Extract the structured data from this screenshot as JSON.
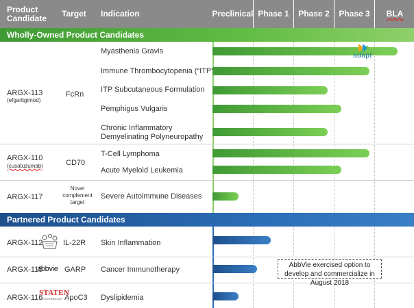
{
  "header": {
    "product_candidate": "Product Candidate",
    "target": "Target",
    "indication": "Indication",
    "phases": [
      "Preclinical",
      "Phase 1",
      "Phase 2",
      "Phase 3",
      "BLA"
    ]
  },
  "sections": {
    "wholly_owned": "Wholly-Owned Product Candidates",
    "partnered": "Partnered Product Candidates"
  },
  "products": {
    "argx113": {
      "name": "ARGX-113",
      "sub": "(efgartigimod)",
      "target": "FcRn"
    },
    "argx110": {
      "name": "ARGX-110",
      "sub": "(cusatuzumab)",
      "target": "CD70"
    },
    "argx117": {
      "name": "ARGX-117",
      "target": "Novel complement target"
    },
    "argx112": {
      "name": "ARGX-112",
      "target": "IL-22R"
    },
    "argx115": {
      "name": "ARGX-115",
      "partner": "abbvie",
      "target": "GARP"
    },
    "argx116": {
      "name": "ARGX-116",
      "partner": "STATEN",
      "partner_sub": "BIOTECHNOLOGY",
      "target": "ApoC3"
    }
  },
  "indications": {
    "mg": "Myasthenia Gravis",
    "itp": "Immune Thrombocytopenia (“ITP”)",
    "itp_sc": "ITP Subcutaneous Formulation",
    "pv": "Pemphigus Vulgaris",
    "cidp_1": "Chronic Inflammatory",
    "cidp_2": "Demyelinating Polyneuropathy",
    "tcl": "T-Cell Lymphoma",
    "aml": "Acute Myeloid Leukemia",
    "sad": "Severe Autoimmune Diseases",
    "skin": "Skin Inflammation",
    "cancer": "Cancer Immunotherapy",
    "dys": "Dyslipidemia"
  },
  "progress": {
    "mg": 0.92,
    "itp": 0.78,
    "itp_sc": 0.57,
    "pv": 0.64,
    "cidp": 0.57,
    "tcl": 0.78,
    "aml": 0.64,
    "sad": 0.13,
    "skin": 0.29,
    "cancer": 0.22,
    "dys": 0.13
  },
  "badge": {
    "name": "adapt"
  },
  "note": "AbbVie exercised option to develop and commercialize in August 2018",
  "colors": {
    "header_gray": "#8a8a8a",
    "green": "#62bd45",
    "blue": "#2a6cb5"
  },
  "icons": [
    "adapt-logo-icon",
    "flask-cells-icon",
    "abbvie-logo-icon",
    "staten-logo-icon"
  ]
}
